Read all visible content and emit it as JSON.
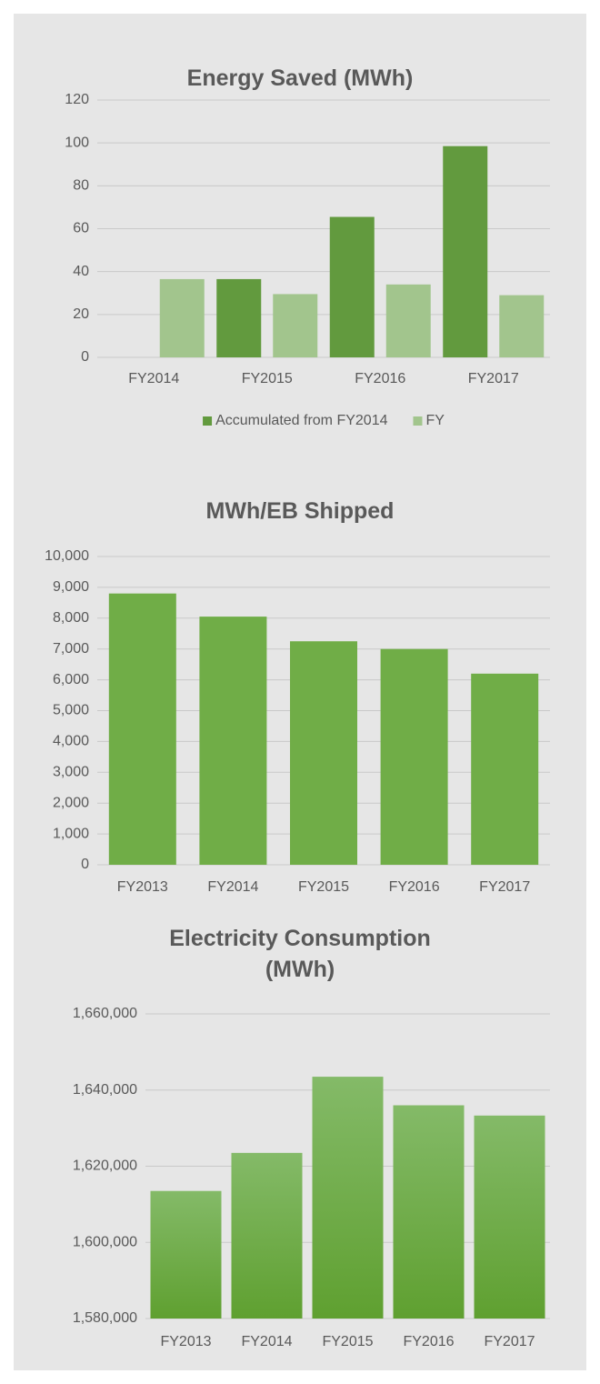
{
  "chart_data": [
    {
      "type": "bar",
      "title": "Energy Saved (MWh)",
      "categories": [
        "FY2014",
        "FY2015",
        "FY2016",
        "FY2017"
      ],
      "series": [
        {
          "name": "Accumulated from FY2014",
          "color": "#629a3e",
          "values": [
            null,
            36.5,
            65.5,
            98.5
          ]
        },
        {
          "name": "FY",
          "color": "#a2c58d",
          "values": [
            36.5,
            29.5,
            34,
            29
          ]
        }
      ],
      "ylim": [
        0,
        120
      ],
      "yticks": [
        0,
        20,
        40,
        60,
        80,
        100,
        120
      ],
      "grid": true,
      "legend": "bottom"
    },
    {
      "type": "bar",
      "title": "MWh/EB Shipped",
      "categories": [
        "FY2013",
        "FY2014",
        "FY2015",
        "FY2016",
        "FY2017"
      ],
      "values": [
        8800,
        8050,
        7250,
        7000,
        6200
      ],
      "color": "#70ad47",
      "ylim": [
        0,
        10000
      ],
      "yticks": [
        0,
        {
          "value": 1000,
          "label": "1,000"
        },
        {
          "value": 2000,
          "label": "2,000"
        },
        {
          "value": 3000,
          "label": "3,000"
        },
        {
          "value": 4000,
          "label": "4,000"
        },
        {
          "value": 5000,
          "label": "5,000"
        },
        {
          "value": 6000,
          "label": "6,000"
        },
        {
          "value": 7000,
          "label": "7,000"
        },
        {
          "value": 8000,
          "label": "8,000"
        },
        {
          "value": 9000,
          "label": "9,000"
        },
        {
          "value": 10000,
          "label": "10,000"
        }
      ],
      "grid": true
    },
    {
      "type": "bar",
      "title": "Electricity Consumption (MWh)",
      "categories": [
        "FY2013",
        "FY2014",
        "FY2015",
        "FY2016",
        "FY2017"
      ],
      "values": [
        1613500,
        1623500,
        1643500,
        1636000,
        1633300
      ],
      "color": [
        "#84ba68",
        "#5fa030"
      ],
      "ylim": [
        1580000,
        1660000
      ],
      "yticks": [
        {
          "value": 1580000,
          "label": "1,580,000"
        },
        {
          "value": 1600000,
          "label": "1,600,000"
        },
        {
          "value": 1620000,
          "label": "1,620,000"
        },
        {
          "value": 1640000,
          "label": "1,640,000"
        },
        {
          "value": 1660000,
          "label": "1,660,000"
        }
      ],
      "grid": true
    }
  ]
}
